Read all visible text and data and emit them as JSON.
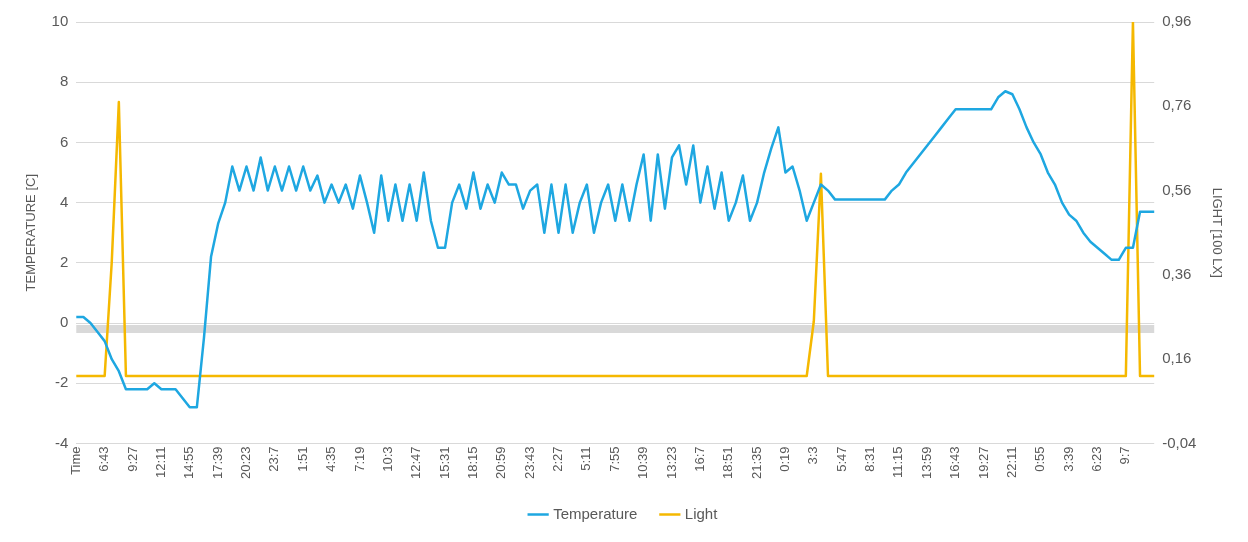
{
  "chart_data": {
    "type": "line",
    "ylabel": "TEMPERATURE [C]",
    "y2label": "LIGHT [100 LX]",
    "categories": [
      "Time",
      null,
      null,
      null,
      "6:43",
      null,
      null,
      null,
      "9:27",
      null,
      null,
      null,
      "12:11",
      null,
      null,
      null,
      "14:55",
      null,
      null,
      null,
      "17:39",
      null,
      null,
      null,
      "20:23",
      null,
      null,
      null,
      "23:7",
      null,
      null,
      null,
      "1:51",
      null,
      null,
      null,
      "4:35",
      null,
      null,
      null,
      "7:19",
      null,
      null,
      null,
      "10:3",
      null,
      null,
      null,
      "12:47",
      null,
      null,
      null,
      "15:31",
      null,
      null,
      null,
      "18:15",
      null,
      null,
      null,
      "20:59",
      null,
      null,
      null,
      "23:43",
      null,
      null,
      null,
      "2:27",
      null,
      null,
      null,
      "5:11",
      null,
      null,
      null,
      "7:55",
      null,
      null,
      null,
      "10:39",
      null,
      null,
      null,
      "13:23",
      null,
      null,
      null,
      "16:7",
      null,
      null,
      null,
      "18:51",
      null,
      null,
      null,
      "21:35",
      null,
      null,
      null,
      "0:19",
      null,
      null,
      null,
      "3:3",
      null,
      null,
      null,
      "5:47",
      null,
      null,
      null,
      "8:31",
      null,
      null,
      null,
      "11:15",
      null,
      null,
      null,
      "13:59",
      null,
      null,
      null,
      "16:43",
      null,
      null,
      null,
      "19:27",
      null,
      null,
      null,
      "22:11",
      null,
      null,
      null,
      "0:55",
      null,
      null,
      null,
      "3:39",
      null,
      null,
      null,
      "6:23",
      null,
      null,
      null,
      "9:7",
      null,
      null,
      null,
      null
    ],
    "series": [
      {
        "name": "Temperature",
        "color": "#1ea7e1",
        "values": [
          0.2,
          0.2,
          0,
          -0.3,
          -0.6,
          -1.2,
          -1.6,
          -2.2,
          -2.2,
          -2.2,
          -2.2,
          -2,
          -2.2,
          -2.2,
          -2.2,
          -2.5,
          -2.8,
          -2.8,
          -0.5,
          2.2,
          3.3,
          4,
          5.2,
          4.4,
          5.2,
          4.4,
          5.5,
          4.4,
          5.2,
          4.4,
          5.2,
          4.4,
          5.2,
          4.4,
          4.9,
          4,
          4.6,
          4,
          4.6,
          3.8,
          4.9,
          4,
          3,
          4.9,
          3.4,
          4.6,
          3.4,
          4.6,
          3.4,
          5,
          3.4,
          2.5,
          2.5,
          4,
          4.6,
          3.8,
          5,
          3.8,
          4.6,
          4,
          5,
          4.6,
          4.6,
          3.8,
          4.4,
          4.6,
          3,
          4.6,
          3,
          4.6,
          3,
          4,
          4.6,
          3,
          4,
          4.6,
          3.4,
          4.6,
          3.4,
          4.6,
          5.6,
          3.4,
          5.6,
          3.8,
          5.5,
          5.9,
          4.6,
          5.9,
          4,
          5.2,
          3.8,
          5,
          3.4,
          4,
          4.9,
          3.4,
          4,
          5,
          5.8,
          6.5,
          5,
          5.2,
          4.4,
          3.4,
          4,
          4.6,
          4.4,
          4.1,
          4.1,
          4.1,
          4.1,
          4.1,
          4.1,
          4.1,
          4.1,
          4.4,
          4.6,
          5,
          5.3,
          5.6,
          5.9,
          6.2,
          6.5,
          6.8,
          7.1,
          7.1,
          7.1,
          7.1,
          7.1,
          7.1,
          7.5,
          7.7,
          7.6,
          7.1,
          6.5,
          6,
          5.6,
          5,
          4.6,
          4,
          3.6,
          3.4,
          3,
          2.7,
          2.5,
          2.3,
          2.1,
          2.1,
          2.5,
          2.5,
          3.7,
          3.7,
          3.7
        ]
      },
      {
        "name": "Light",
        "color": "#f5b800",
        "axis": "y2",
        "values": [
          0.12,
          0.12,
          0.12,
          0.12,
          0.12,
          0.39,
          0.77,
          0.12,
          0.12,
          0.12,
          0.12,
          0.12,
          0.12,
          0.12,
          0.12,
          0.12,
          0.12,
          0.12,
          0.12,
          0.12,
          0.12,
          0.12,
          0.12,
          0.12,
          0.12,
          0.12,
          0.12,
          0.12,
          0.12,
          0.12,
          0.12,
          0.12,
          0.12,
          0.12,
          0.12,
          0.12,
          0.12,
          0.12,
          0.12,
          0.12,
          0.12,
          0.12,
          0.12,
          0.12,
          0.12,
          0.12,
          0.12,
          0.12,
          0.12,
          0.12,
          0.12,
          0.12,
          0.12,
          0.12,
          0.12,
          0.12,
          0.12,
          0.12,
          0.12,
          0.12,
          0.12,
          0.12,
          0.12,
          0.12,
          0.12,
          0.12,
          0.12,
          0.12,
          0.12,
          0.12,
          0.12,
          0.12,
          0.12,
          0.12,
          0.12,
          0.12,
          0.12,
          0.12,
          0.12,
          0.12,
          0.12,
          0.12,
          0.12,
          0.12,
          0.12,
          0.12,
          0.12,
          0.12,
          0.12,
          0.12,
          0.12,
          0.12,
          0.12,
          0.12,
          0.12,
          0.12,
          0.12,
          0.12,
          0.12,
          0.12,
          0.12,
          0.12,
          0.12,
          0.12,
          0.25,
          0.6,
          0.12,
          0.12,
          0.12,
          0.12,
          0.12,
          0.12,
          0.12,
          0.12,
          0.12,
          0.12,
          0.12,
          0.12,
          0.12,
          0.12,
          0.12,
          0.12,
          0.12,
          0.12,
          0.12,
          0.12,
          0.12,
          0.12,
          0.12,
          0.12,
          0.12,
          0.12,
          0.12,
          0.12,
          0.12,
          0.12,
          0.12,
          0.12,
          0.12,
          0.12,
          0.12,
          0.12,
          0.12,
          0.12,
          0.12,
          0.12,
          0.12,
          0.12,
          0.12,
          0.96,
          0.12,
          0.12,
          0.12
        ]
      }
    ],
    "ylim": [
      -4,
      10
    ],
    "yticks": [
      -4,
      -2,
      0,
      2,
      4,
      6,
      8,
      10
    ],
    "y2lim": [
      -0.04,
      0.96
    ],
    "y2ticks": [
      {
        "value": -0.04,
        "label": "-0,04"
      },
      {
        "value": 0.16,
        "label": "0,16"
      },
      {
        "value": 0.36,
        "label": "0,36"
      },
      {
        "value": 0.56,
        "label": "0,56"
      },
      {
        "value": 0.76,
        "label": "0,76"
      },
      {
        "value": 0.96,
        "label": "0,96"
      }
    ],
    "ref_lines": [
      {
        "axis": "y",
        "value": -0.2,
        "color": "#d9d9d9"
      }
    ],
    "grid": "y",
    "legend": "bottom",
    "marker": "none",
    "line_style": "solid"
  }
}
